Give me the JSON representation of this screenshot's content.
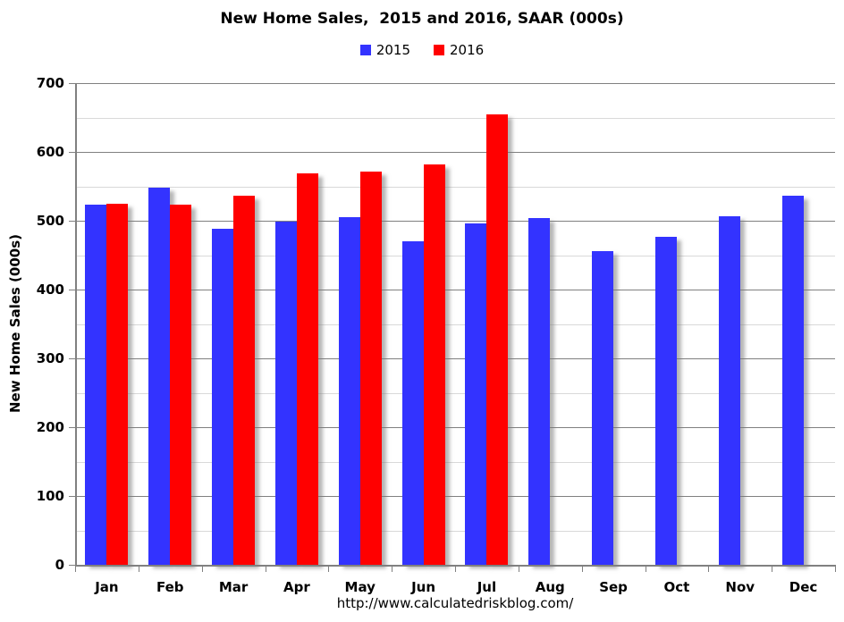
{
  "chart_data": {
    "type": "bar",
    "title": "New Home Sales,  2015 and 2016, SAAR (000s)",
    "ylabel": "New Home Sales (000s)",
    "xlabel": "",
    "categories": [
      "Jan",
      "Feb",
      "Mar",
      "Apr",
      "May",
      "Jun",
      "Jul",
      "Aug",
      "Sep",
      "Oct",
      "Nov",
      "Dec"
    ],
    "series": [
      {
        "name": "2015",
        "color": "#3333FF",
        "values": [
          523,
          548,
          488,
          499,
          505,
          470,
          496,
          504,
          456,
          477,
          507,
          536
        ]
      },
      {
        "name": "2016",
        "color": "#FF0000",
        "values": [
          525,
          524,
          536,
          569,
          572,
          582,
          654,
          null,
          null,
          null,
          null,
          null
        ]
      }
    ],
    "ylim": [
      0,
      700
    ],
    "ytick_major": 100,
    "ytick_minor": 50,
    "grid": true,
    "legend_position": "top-center"
  },
  "footer": {
    "url": "http://www.calculatedriskblog.com/"
  },
  "colors": {
    "background": "#FFFFFF",
    "bar_2015": "#3333FF",
    "bar_2016": "#FF0000",
    "major_gridline": "#808080",
    "minor_gridline": "#D9D9D9",
    "axis_line": "#808080",
    "text": "#000000"
  }
}
